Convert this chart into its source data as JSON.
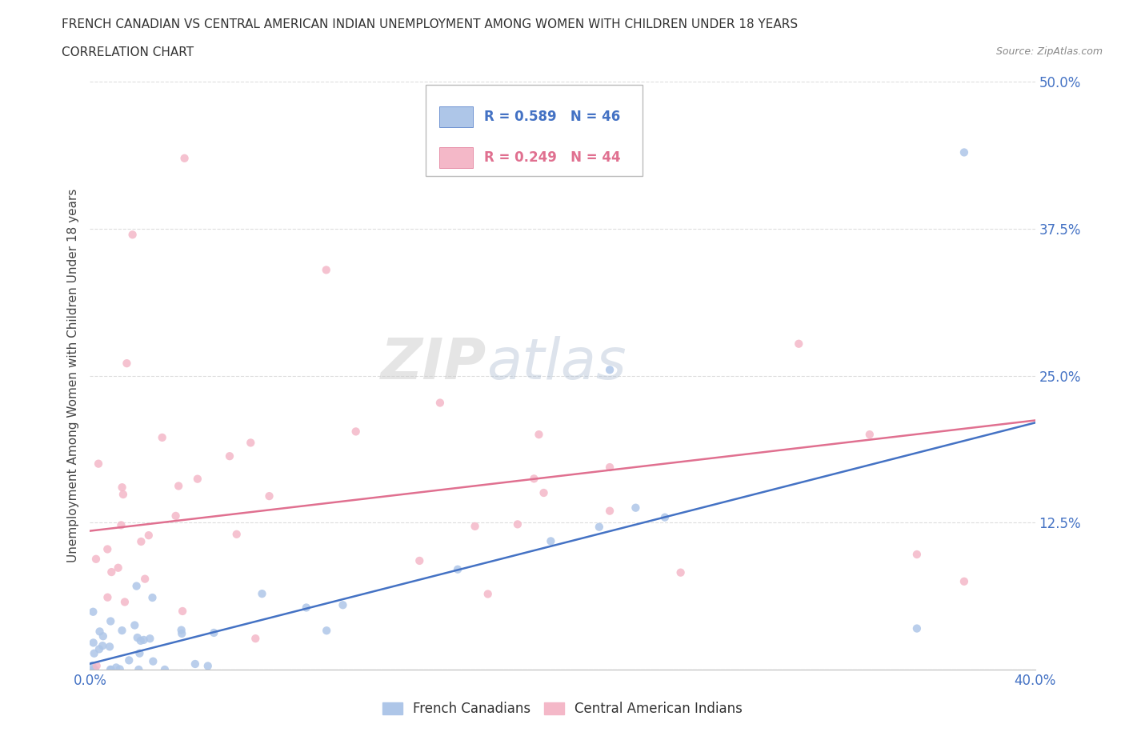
{
  "title_line1": "FRENCH CANADIAN VS CENTRAL AMERICAN INDIAN UNEMPLOYMENT AMONG WOMEN WITH CHILDREN UNDER 18 YEARS",
  "title_line2": "CORRELATION CHART",
  "source_text": "Source: ZipAtlas.com",
  "ylabel": "Unemployment Among Women with Children Under 18 years",
  "xlim": [
    0.0,
    0.4
  ],
  "ylim": [
    0.0,
    0.5
  ],
  "xticks": [
    0.0,
    0.05,
    0.1,
    0.15,
    0.2,
    0.25,
    0.3,
    0.35,
    0.4
  ],
  "yticks": [
    0.0,
    0.125,
    0.25,
    0.375,
    0.5
  ],
  "ytick_labels": [
    "",
    "12.5%",
    "25.0%",
    "37.5%",
    "50.0%"
  ],
  "grid_color": "#dddddd",
  "background_color": "#ffffff",
  "legend_r1": "R = 0.589",
  "legend_n1": "N = 46",
  "legend_r2": "R = 0.249",
  "legend_n2": "N = 44",
  "blue_color": "#aec6e8",
  "pink_color": "#f4b8c8",
  "blue_line_color": "#4472c4",
  "pink_line_color": "#e07090",
  "tick_color": "#4472c4",
  "fc_line_start_y": 0.005,
  "fc_line_end_y": 0.21,
  "ca_line_start_y": 0.118,
  "ca_line_end_y": 0.212
}
